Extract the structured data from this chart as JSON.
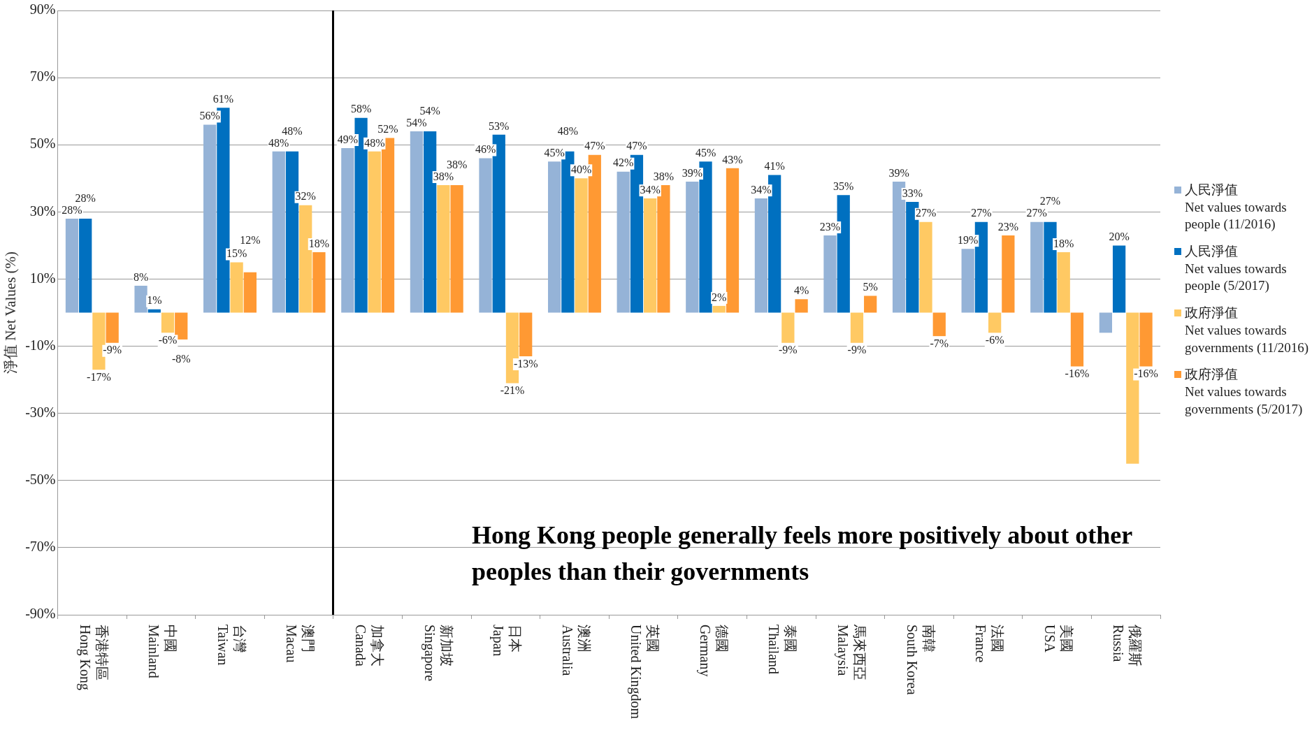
{
  "chart_data": {
    "type": "bar",
    "ylabel": "淨值 Net Values (%)",
    "categories": [
      "Hong Kong\n香港特區",
      "Mainland\n中國",
      "Taiwan\n台灣",
      "Macau\n澳門",
      "Canada\n加拿大",
      "Singapore\n新加坡",
      "Japan\n日本",
      "Australia\n澳洲",
      "United Kingdom\n英國",
      "Germany\n德國",
      "Thailand\n泰國",
      "Malaysia\n馬來西亞",
      "South Korea\n南韓",
      "France\n法國",
      "USA\n美國",
      "Russia\n俄羅斯"
    ],
    "series": [
      {
        "name": "人民淨值\nNet values towards people (11/2016)",
        "color": "#95b3d7",
        "values": [
          28,
          8,
          56,
          48,
          49,
          54,
          46,
          45,
          42,
          39,
          34,
          23,
          39,
          19,
          27,
          -6
        ],
        "value_labels": [
          "28%",
          "8%",
          "56%",
          "48%",
          "49%",
          "54%",
          "46%",
          "45%",
          "42%",
          "39%",
          "34%",
          "23%",
          "39%",
          "19%",
          "27%",
          null
        ]
      },
      {
        "name": "人民淨值\nNet values towards people (5/2017)",
        "color": "#0070c0",
        "values": [
          28,
          1,
          61,
          48,
          58,
          54,
          53,
          48,
          47,
          45,
          41,
          35,
          33,
          27,
          27,
          20
        ],
        "value_labels": [
          "28%",
          "1%",
          "61%",
          "48%",
          "58%",
          "54%",
          "53%",
          "48%",
          "47%",
          "45%",
          "41%",
          "35%",
          "33%",
          "27%",
          "27%",
          "20%"
        ]
      },
      {
        "name": "政府淨值\nNet values towards governments (11/2016)",
        "color": "#ffc963",
        "values": [
          -17,
          -6,
          15,
          32,
          48,
          38,
          -21,
          40,
          34,
          2,
          -9,
          -9,
          27,
          -6,
          18,
          -45
        ],
        "value_labels": [
          "-17%",
          "-6%",
          "15%",
          "32%",
          "48%",
          "38%",
          "-21%",
          "40%",
          "34%",
          "2%",
          "-9%",
          "-9%",
          "27%",
          "-6%",
          "18%",
          null
        ]
      },
      {
        "name": "政府淨值\nNet values towards governments (5/2017)",
        "color": "#ff9933",
        "values": [
          -9,
          -8,
          12,
          18,
          52,
          38,
          -13,
          47,
          38,
          43,
          4,
          5,
          -7,
          23,
          -16,
          -16
        ],
        "value_labels": [
          "-9%",
          "-8%",
          "12%",
          "18%",
          "52%",
          "38%",
          "-13%",
          "47%",
          "38%",
          "43%",
          "4%",
          "5%",
          "-7%",
          "23%",
          "-16%",
          "-16%"
        ]
      }
    ],
    "ylim": [
      -90,
      90
    ],
    "yticks": [
      {
        "value": -90,
        "label": "-90%"
      },
      {
        "value": -70,
        "label": "-70%"
      },
      {
        "value": -50,
        "label": "-50%"
      },
      {
        "value": -30,
        "label": "-30%"
      },
      {
        "value": -10,
        "label": "-10%"
      },
      {
        "value": 10,
        "label": "10%"
      },
      {
        "value": 30,
        "label": "30%"
      },
      {
        "value": 50,
        "label": "50%"
      },
      {
        "value": 70,
        "label": "70%"
      },
      {
        "value": 90,
        "label": "90%"
      }
    ],
    "grid": "y",
    "legend": "right",
    "annotations": [
      "Hong Kong people generally feels more positively about other peoples than their governments"
    ]
  }
}
